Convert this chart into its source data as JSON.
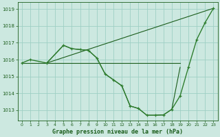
{
  "title": "Graphe pression niveau de la mer (hPa)",
  "bg_color": "#cce8e0",
  "grid_color": "#9ecfc4",
  "line_color_dark": "#1a5c1a",
  "line_color_main": "#2e7d2e",
  "xlim": [
    -0.5,
    23.5
  ],
  "ylim": [
    1012.4,
    1019.4
  ],
  "yticks": [
    1013,
    1014,
    1015,
    1016,
    1017,
    1018,
    1019
  ],
  "xticks": [
    0,
    1,
    2,
    3,
    4,
    5,
    6,
    7,
    8,
    9,
    10,
    11,
    12,
    13,
    14,
    15,
    16,
    17,
    18,
    19,
    20,
    21,
    22,
    23
  ],
  "curve1_x": [
    0,
    1,
    3,
    5,
    6,
    7,
    8,
    9,
    10,
    11,
    12,
    13,
    14,
    15,
    16,
    17,
    18,
    19,
    20,
    21,
    22,
    23
  ],
  "curve1_y": [
    1015.8,
    1016.0,
    1015.8,
    1016.85,
    1016.65,
    1016.6,
    1016.55,
    1016.1,
    1015.15,
    1014.8,
    1014.45,
    1013.25,
    1013.1,
    1012.7,
    1012.7,
    1012.72,
    1013.05,
    1013.85,
    1015.55,
    1017.2,
    1018.2,
    1019.05
  ],
  "flat_line_x": [
    0,
    19
  ],
  "flat_line_y": [
    1015.8,
    1015.8
  ],
  "diag_line_x": [
    3,
    23
  ],
  "diag_line_y": [
    1015.8,
    1019.05
  ],
  "lower_curve_x": [
    3,
    5,
    6,
    7,
    8,
    9,
    10,
    11,
    12,
    13,
    14,
    15,
    16,
    17,
    18,
    19
  ],
  "lower_curve_y": [
    1015.8,
    1016.85,
    1016.65,
    1016.6,
    1016.55,
    1016.1,
    1015.15,
    1014.8,
    1014.45,
    1013.25,
    1013.1,
    1012.7,
    1012.7,
    1012.72,
    1013.05,
    1015.55
  ]
}
